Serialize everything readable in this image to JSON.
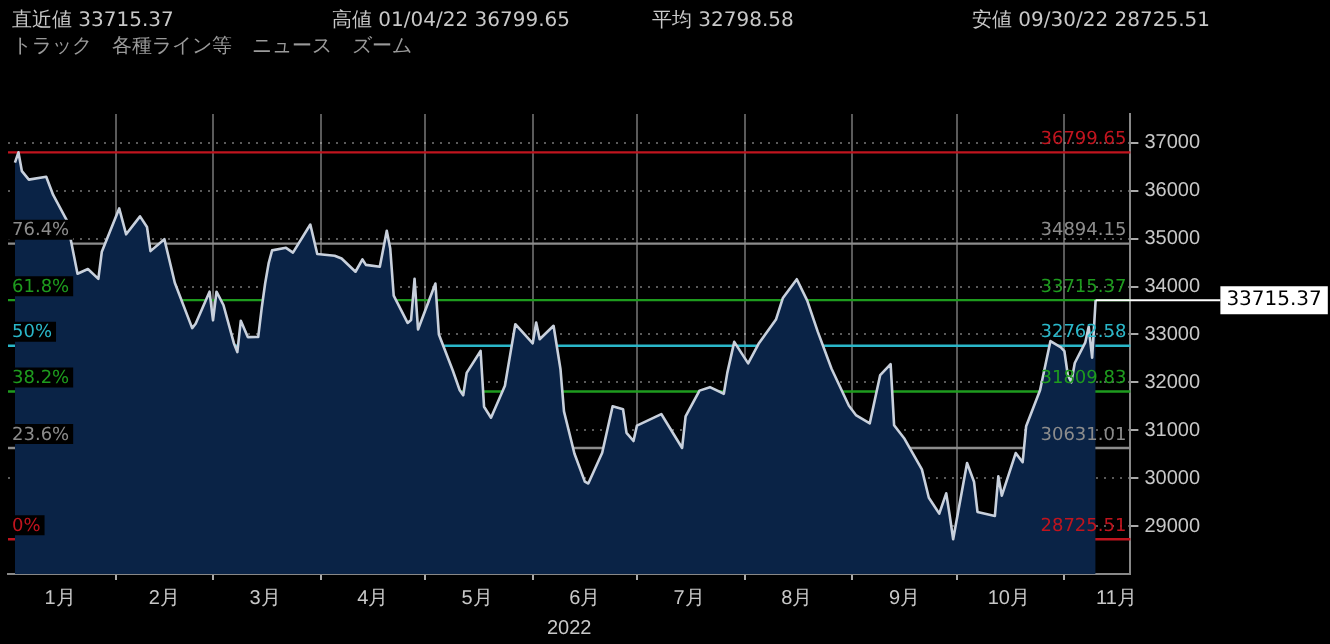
{
  "chart_data": {
    "type": "area",
    "xlabel": "2022",
    "x": [
      "2022-01-03",
      "2022-01-04",
      "2022-01-05",
      "2022-01-07",
      "2022-01-12",
      "2022-01-14",
      "2022-01-18",
      "2022-01-21",
      "2022-01-24",
      "2022-01-27",
      "2022-01-28",
      "2022-02-02",
      "2022-02-04",
      "2022-02-08",
      "2022-02-10",
      "2022-02-11",
      "2022-02-15",
      "2022-02-18",
      "2022-02-23",
      "2022-02-24",
      "2022-02-28",
      "2022-03-01",
      "2022-03-02",
      "2022-03-04",
      "2022-03-07",
      "2022-03-08",
      "2022-03-09",
      "2022-03-11",
      "2022-03-14",
      "2022-03-15",
      "2022-03-16",
      "2022-03-17",
      "2022-03-18",
      "2022-03-22",
      "2022-03-24",
      "2022-03-29",
      "2022-03-31",
      "2022-04-05",
      "2022-04-07",
      "2022-04-11",
      "2022-04-13",
      "2022-04-14",
      "2022-04-18",
      "2022-04-20",
      "2022-04-21",
      "2022-04-22",
      "2022-04-26",
      "2022-04-27",
      "2022-04-28",
      "2022-04-29",
      "2022-05-04",
      "2022-05-05",
      "2022-05-09",
      "2022-05-11",
      "2022-05-12",
      "2022-05-13",
      "2022-05-17",
      "2022-05-18",
      "2022-05-20",
      "2022-05-24",
      "2022-05-27",
      "2022-06-01",
      "2022-06-02",
      "2022-06-03",
      "2022-06-07",
      "2022-06-09",
      "2022-06-10",
      "2022-06-13",
      "2022-06-16",
      "2022-06-17",
      "2022-06-21",
      "2022-06-24",
      "2022-06-27",
      "2022-06-28",
      "2022-06-30",
      "2022-07-01",
      "2022-07-08",
      "2022-07-14",
      "2022-07-15",
      "2022-07-19",
      "2022-07-22",
      "2022-07-26",
      "2022-07-27",
      "2022-07-29",
      "2022-08-02",
      "2022-08-05",
      "2022-08-10",
      "2022-08-12",
      "2022-08-16",
      "2022-08-19",
      "2022-08-22",
      "2022-08-26",
      "2022-08-31",
      "2022-09-02",
      "2022-09-06",
      "2022-09-09",
      "2022-09-12",
      "2022-09-13",
      "2022-09-16",
      "2022-09-21",
      "2022-09-23",
      "2022-09-26",
      "2022-09-28",
      "2022-09-29",
      "2022-09-30",
      "2022-10-04",
      "2022-10-06",
      "2022-10-07",
      "2022-10-12",
      "2022-10-13",
      "2022-10-14",
      "2022-10-18",
      "2022-10-20",
      "2022-10-21",
      "2022-10-25",
      "2022-10-28",
      "2022-10-31",
      "2022-11-01",
      "2022-11-02",
      "2022-11-03",
      "2022-11-04",
      "2022-11-07",
      "2022-11-08",
      "2022-11-09",
      "2022-11-10"
    ],
    "series": [
      {
        "color": "#c8d0dc",
        "values": [
          36585,
          36800,
          36407,
          36231,
          36290,
          35911,
          35368,
          34265,
          34364,
          34160,
          34725,
          35629,
          35089,
          35463,
          35241,
          34738,
          34988,
          34079,
          33131,
          33223,
          33892,
          33294,
          33891,
          33614,
          32817,
          32632,
          33286,
          32944,
          32945,
          33544,
          34063,
          34481,
          34754,
          34807,
          34708,
          35294,
          34678,
          34641,
          34583,
          34308,
          34564,
          34451,
          34411,
          35161,
          34793,
          33811,
          33240,
          33302,
          34160,
          33103,
          34061,
          32998,
          32246,
          31834,
          31730,
          32197,
          32655,
          31490,
          31262,
          31929,
          33213,
          32813,
          33248,
          32900,
          33180,
          32272,
          31393,
          30516,
          29927,
          29889,
          30530,
          31500,
          31438,
          30946,
          30775,
          31097,
          31338,
          30630,
          31288,
          31827,
          31899,
          31761,
          32197,
          32845,
          32396,
          32803,
          33309,
          33761,
          34152,
          33706,
          33063,
          32283,
          31510,
          31318,
          31145,
          32151,
          32381,
          31104,
          30822,
          30183,
          29590,
          29260,
          29684,
          29225,
          28726,
          30316,
          29926,
          29296,
          29210,
          30038,
          29634,
          30523,
          30333,
          31082,
          31836,
          32861,
          32732,
          32653,
          32147,
          32001,
          32403,
          32827,
          33160,
          32513,
          33715
        ]
      }
    ],
    "xlim": [
      "2022-01-01",
      "2022-11-20"
    ],
    "xticks": [
      {
        "value": "2022-01-16",
        "label": "1月"
      },
      {
        "value": "2022-02-01",
        "label": null
      },
      {
        "value": "2022-02-15",
        "label": "2月"
      },
      {
        "value": "2022-03-01",
        "label": null
      },
      {
        "value": "2022-03-16",
        "label": "3月"
      },
      {
        "value": "2022-04-01",
        "label": null
      },
      {
        "value": "2022-04-16",
        "label": "4月"
      },
      {
        "value": "2022-05-01",
        "label": null
      },
      {
        "value": "2022-05-16",
        "label": "5月"
      },
      {
        "value": "2022-06-01",
        "label": null
      },
      {
        "value": "2022-06-16",
        "label": "6月"
      },
      {
        "value": "2022-07-01",
        "label": null
      },
      {
        "value": "2022-07-16",
        "label": "7月"
      },
      {
        "value": "2022-08-01",
        "label": null
      },
      {
        "value": "2022-08-16",
        "label": "8月"
      },
      {
        "value": "2022-09-01",
        "label": null
      },
      {
        "value": "2022-09-16",
        "label": "9月"
      },
      {
        "value": "2022-10-01",
        "label": null
      },
      {
        "value": "2022-10-16",
        "label": "10月"
      },
      {
        "value": "2022-11-01",
        "label": null
      },
      {
        "value": "2022-11-16",
        "label": "11月"
      }
    ],
    "ylim": [
      28000,
      37600
    ],
    "yticks": [
      29000,
      30000,
      31000,
      32000,
      33000,
      34000,
      35000,
      36000,
      37000
    ],
    "grid": true,
    "legend": false,
    "marker": "none",
    "line_style": "solid",
    "ref_lines": [
      {
        "axis": "y",
        "value": 36799.65,
        "label": "36799.65",
        "color": "#c0141e"
      },
      {
        "axis": "y",
        "value": 34894.15,
        "label": "34894.15",
        "color": "#8c8c8c"
      },
      {
        "axis": "y",
        "value": 33715.37,
        "label": "33715.37",
        "color": "#1e9b1e"
      },
      {
        "axis": "y",
        "value": 32762.58,
        "label": "32762.58",
        "color": "#2ab7c9"
      },
      {
        "axis": "y",
        "value": 31809.83,
        "label": "31809.83",
        "color": "#1e9b1e"
      },
      {
        "axis": "y",
        "value": 30631.01,
        "label": "30631.01",
        "color": "#8c8c8c"
      },
      {
        "axis": "y",
        "value": 28725.51,
        "label": "28725.51",
        "color": "#c0141e"
      }
    ],
    "annotations": [
      "直近値 33715.37",
      "高値 01/04/22 36799.65",
      "平均 32798.58",
      "安値 09/30/22 28725.51",
      "トラック",
      "各種ライン等",
      "ニュース",
      "ズーム",
      {
        "text": "76.4%",
        "y": 34894.15
      },
      {
        "text": "61.8%",
        "y": 33715.37
      },
      {
        "text": "50%",
        "y": 32762.58
      },
      {
        "text": "38.2%",
        "y": 31809.83
      },
      {
        "text": "23.6%",
        "y": 30631.01
      },
      {
        "text": "0%",
        "y": 28725.51
      },
      {
        "text": "33715.37",
        "x": "2022-11-10",
        "y": 33715.37
      }
    ]
  }
}
